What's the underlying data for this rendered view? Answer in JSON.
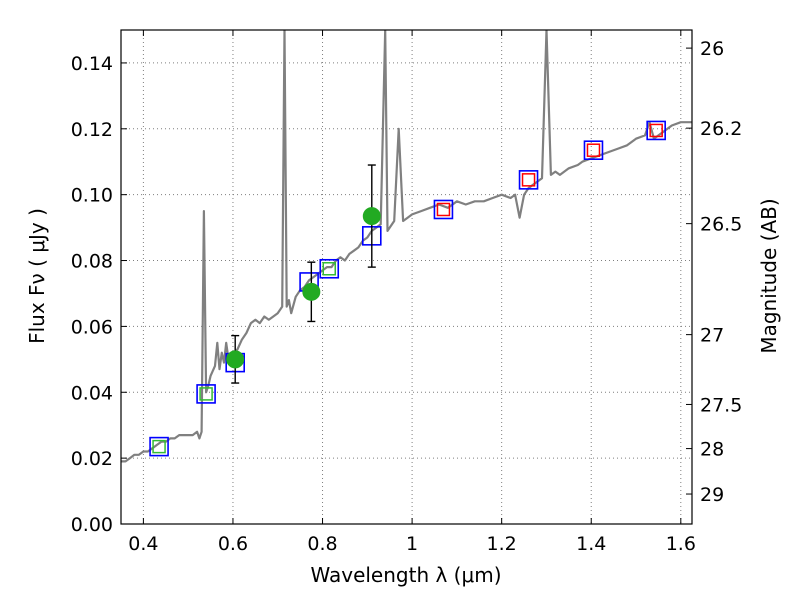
{
  "chart_data": {
    "type": "scatter",
    "title": "",
    "xlabel": "Wavelength  λ (μm)",
    "ylabel": "Flux  Fν  ( μJy )",
    "ylabel_right": "Magnitude (AB)",
    "xlim": [
      0.35,
      1.625
    ],
    "ylim": [
      0.0,
      0.15
    ],
    "grid": true,
    "x_ticks": [
      0.4,
      0.6,
      0.8,
      1.0,
      1.2,
      1.4,
      1.6
    ],
    "x_tick_labels": [
      "0.4",
      "0.6",
      "0.8",
      "1",
      "1.2",
      "1.4",
      "1.6"
    ],
    "y_ticks": [
      0.0,
      0.02,
      0.04,
      0.06,
      0.08,
      0.1,
      0.12,
      0.14
    ],
    "y_tick_labels": [
      "0.00",
      "0.02",
      "0.04",
      "0.06",
      "0.08",
      "0.10",
      "0.12",
      "0.14"
    ],
    "right_ticks": [
      {
        "flux": 0.1445,
        "label": "26"
      },
      {
        "flux": 0.1202,
        "label": "26.2"
      },
      {
        "flux": 0.0912,
        "label": "26.5"
      },
      {
        "flux": 0.0575,
        "label": "27"
      },
      {
        "flux": 0.0363,
        "label": "27.5"
      },
      {
        "flux": 0.0229,
        "label": "28"
      },
      {
        "flux": 0.0091,
        "label": "29"
      }
    ],
    "colors": {
      "spectrum": "#808080",
      "observed": "#22aa22",
      "model_box": "#0000ff",
      "green_box": "#33bb33",
      "red_box": "#ff0000",
      "errorbar": "#000000",
      "grid": "#7f7f7f"
    },
    "series": [
      {
        "kind": "spectrum",
        "x": [
          0.35,
          0.36,
          0.37,
          0.38,
          0.39,
          0.4,
          0.41,
          0.42,
          0.43,
          0.44,
          0.45,
          0.46,
          0.47,
          0.48,
          0.49,
          0.5,
          0.51,
          0.52,
          0.525,
          0.53,
          0.535,
          0.54,
          0.545,
          0.55,
          0.56,
          0.565,
          0.57,
          0.575,
          0.58,
          0.585,
          0.59,
          0.6,
          0.61,
          0.62,
          0.63,
          0.64,
          0.65,
          0.66,
          0.67,
          0.68,
          0.69,
          0.7,
          0.71,
          0.715,
          0.72,
          0.725,
          0.73,
          0.74,
          0.75,
          0.76,
          0.77,
          0.78,
          0.79,
          0.8,
          0.81,
          0.82,
          0.83,
          0.84,
          0.85,
          0.86,
          0.87,
          0.88,
          0.89,
          0.9,
          0.91,
          0.92,
          0.93,
          0.94,
          0.945,
          0.95,
          0.96,
          0.97,
          0.98,
          0.99,
          1.0,
          1.02,
          1.04,
          1.06,
          1.08,
          1.1,
          1.12,
          1.14,
          1.16,
          1.18,
          1.2,
          1.22,
          1.23,
          1.24,
          1.25,
          1.26,
          1.27,
          1.28,
          1.29,
          1.3,
          1.31,
          1.32,
          1.33,
          1.35,
          1.37,
          1.38,
          1.4,
          1.42,
          1.44,
          1.46,
          1.48,
          1.5,
          1.52,
          1.53,
          1.54,
          1.55,
          1.56,
          1.57,
          1.58,
          1.6,
          1.625
        ],
        "y": [
          0.019,
          0.019,
          0.02,
          0.021,
          0.021,
          0.022,
          0.022,
          0.023,
          0.024,
          0.025,
          0.025,
          0.026,
          0.026,
          0.027,
          0.027,
          0.027,
          0.027,
          0.028,
          0.026,
          0.028,
          0.095,
          0.04,
          0.042,
          0.045,
          0.048,
          0.055,
          0.047,
          0.052,
          0.049,
          0.055,
          0.05,
          0.052,
          0.053,
          0.056,
          0.058,
          0.061,
          0.062,
          0.061,
          0.063,
          0.062,
          0.063,
          0.064,
          0.066,
          0.15,
          0.066,
          0.068,
          0.064,
          0.069,
          0.071,
          0.072,
          0.074,
          0.075,
          0.076,
          0.077,
          0.078,
          0.078,
          0.08,
          0.081,
          0.08,
          0.082,
          0.083,
          0.084,
          0.086,
          0.087,
          0.089,
          0.09,
          0.091,
          0.15,
          0.089,
          0.09,
          0.092,
          0.12,
          0.092,
          0.093,
          0.094,
          0.095,
          0.096,
          0.097,
          0.096,
          0.098,
          0.097,
          0.098,
          0.098,
          0.099,
          0.1,
          0.099,
          0.1,
          0.093,
          0.1,
          0.102,
          0.103,
          0.104,
          0.105,
          0.15,
          0.106,
          0.107,
          0.106,
          0.108,
          0.109,
          0.11,
          0.111,
          0.112,
          0.113,
          0.114,
          0.115,
          0.117,
          0.118,
          0.122,
          0.117,
          0.118,
          0.119,
          0.12,
          0.121,
          0.122,
          0.122
        ]
      },
      {
        "kind": "model_boxes",
        "points": [
          {
            "x": 0.435,
            "y": 0.0235,
            "inner": "green"
          },
          {
            "x": 0.54,
            "y": 0.0395,
            "inner": "green"
          },
          {
            "x": 0.605,
            "y": 0.049,
            "inner": "none"
          },
          {
            "x": 0.77,
            "y": 0.0735,
            "inner": "none"
          },
          {
            "x": 0.815,
            "y": 0.0775,
            "inner": "green"
          },
          {
            "x": 0.91,
            "y": 0.0875,
            "inner": "none"
          },
          {
            "x": 1.07,
            "y": 0.0955,
            "inner": "red"
          },
          {
            "x": 1.26,
            "y": 0.1045,
            "inner": "red"
          },
          {
            "x": 1.405,
            "y": 0.1135,
            "inner": "red"
          },
          {
            "x": 1.545,
            "y": 0.1195,
            "inner": "red"
          }
        ]
      },
      {
        "kind": "observed",
        "points": [
          {
            "x": 0.605,
            "y": 0.05,
            "err": 0.0072
          },
          {
            "x": 0.775,
            "y": 0.0705,
            "err": 0.009
          },
          {
            "x": 0.91,
            "y": 0.0935,
            "err": 0.0155
          }
        ]
      }
    ]
  }
}
